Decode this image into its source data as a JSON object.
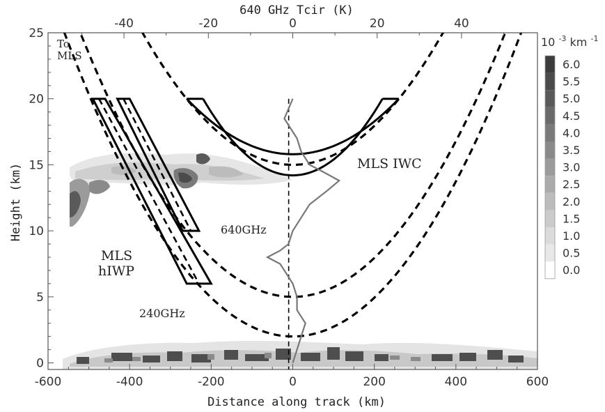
{
  "chart_data": {
    "type": "contour",
    "xlabel": "Distance along track (km)",
    "ylabel": "Height (km)",
    "top_xlabel": "640 GHz Tcir (K)",
    "xlim": [
      -600,
      600
    ],
    "ylim": [
      -0.5,
      25
    ],
    "top_xlim": [
      -58,
      58
    ],
    "x_ticks": [
      -600,
      -400,
      -200,
      0,
      200,
      400,
      600
    ],
    "y_ticks": [
      0,
      5,
      10,
      15,
      20,
      25
    ],
    "top_ticks": [
      -40,
      -20,
      0,
      20,
      40
    ],
    "colorbar": {
      "unit_prefix": "10",
      "unit_exp": "-3",
      "unit_suffix": " km",
      "unit_suffix_exp": "-1",
      "levels": [
        "6.0",
        "5.5",
        "5.0",
        "4.5",
        "4.0",
        "3.5",
        "3.0",
        "2.5",
        "2.0",
        "1.5",
        "1.0",
        "0.5",
        "0.0"
      ],
      "colors": [
        "#3c3c3c",
        "#4b4b4b",
        "#5a5a5a",
        "#6a6a6a",
        "#7a7a7a",
        "#8a8a8a",
        "#9b9b9b",
        "#ababab",
        "#bcbcbc",
        "#cbcbcb",
        "#dbdbdb",
        "#e8e8e8",
        "#ffffff"
      ]
    },
    "annotations": {
      "to_mls": "To\nMLS",
      "mls_iwc": "MLS IWC",
      "mls_hiwp": "MLS\nhIWP",
      "ghz640": "640GHz",
      "ghz240": "240GHz"
    },
    "dashed_parabolas": [
      {
        "vertex_height_km": 15,
        "points": [
          [
            -550,
            37.3
          ],
          [
            -400,
            26.8
          ],
          [
            -200,
            18.0
          ],
          [
            0,
            15.0
          ],
          [
            200,
            18.0
          ],
          [
            400,
            26.8
          ],
          [
            550,
            37.3
          ]
        ]
      },
      {
        "vertex_height_km": 5,
        "points": [
          [
            -550,
            27.3
          ],
          [
            -400,
            16.8
          ],
          [
            -200,
            8.0
          ],
          [
            0,
            5.0
          ],
          [
            200,
            8.0
          ],
          [
            400,
            16.8
          ],
          [
            550,
            27.3
          ]
        ]
      },
      {
        "vertex_height_km": 2,
        "points": [
          [
            -550,
            24.2
          ],
          [
            -400,
            13.8
          ],
          [
            -200,
            5.0
          ],
          [
            0,
            2.0
          ],
          [
            200,
            5.0
          ],
          [
            400,
            13.8
          ],
          [
            550,
            24.2
          ]
        ]
      }
    ],
    "iwc_band": {
      "upper_vertex_km": 15.8,
      "lower_vertex_km": 14.2,
      "x_range": [
        -260,
        260
      ],
      "top_height_km": 20
    },
    "hiwp_bands": [
      {
        "label": "240GHz",
        "top": [
          [
            -490,
            20
          ],
          [
            -460,
            20
          ]
        ],
        "bottom": [
          [
            -260,
            6
          ],
          [
            -200,
            6
          ]
        ]
      },
      {
        "label": "640GHz",
        "top": [
          [
            -430,
            20
          ],
          [
            -400,
            20
          ]
        ],
        "bottom": [
          [
            -270,
            10
          ],
          [
            -230,
            10
          ]
        ]
      }
    ],
    "tcir_profile": {
      "x_units": "K (top axis)",
      "points": [
        [
          0,
          20
        ],
        [
          -2,
          18.5
        ],
        [
          1,
          17
        ],
        [
          2,
          16
        ],
        [
          4,
          15
        ],
        [
          7,
          14.5
        ],
        [
          11,
          13.8
        ],
        [
          8,
          13
        ],
        [
          4,
          12
        ],
        [
          2,
          11
        ],
        [
          0,
          10
        ],
        [
          -1,
          9
        ],
        [
          -3,
          8.5
        ],
        [
          -6,
          8
        ],
        [
          -3,
          7.5
        ],
        [
          -2,
          7
        ],
        [
          0,
          6
        ],
        [
          1,
          5
        ],
        [
          1,
          4
        ],
        [
          3,
          3
        ],
        [
          2,
          2
        ],
        [
          1,
          1
        ],
        [
          0,
          0
        ]
      ]
    },
    "grid": false
  }
}
